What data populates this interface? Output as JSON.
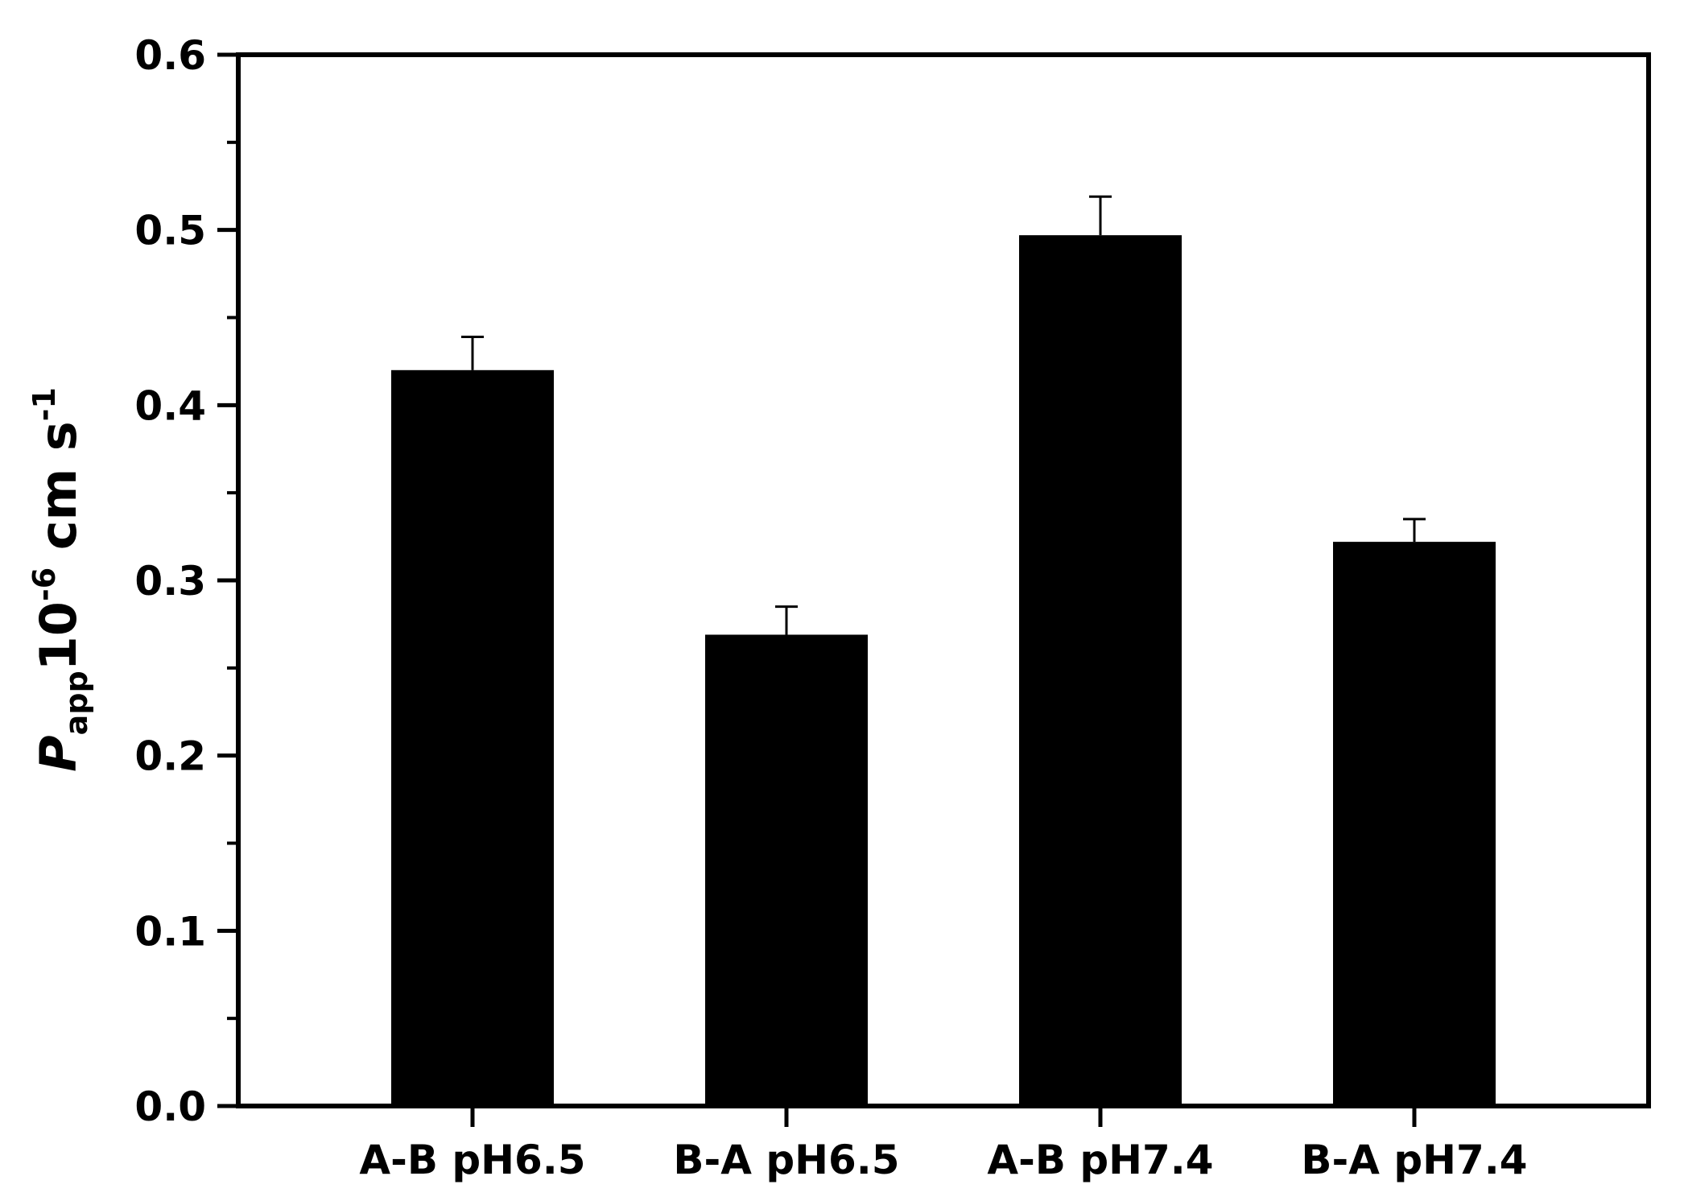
{
  "chart_data": {
    "type": "bar",
    "categories": [
      "A-B pH6.5",
      "B-A pH6.5",
      "A-B pH7.4",
      "B-A pH7.4"
    ],
    "values": [
      0.42,
      0.269,
      0.497,
      0.322
    ],
    "errors": [
      0.019,
      0.016,
      0.022,
      0.013
    ],
    "title": "",
    "ylabel": {
      "main": "P",
      "subscript": "app",
      "mid": "10",
      "mid_sup": "-6",
      "unit": " cm s",
      "unit_sup": "-1"
    },
    "ylim": [
      0,
      0.6
    ],
    "yticks": [
      "0.0",
      "0.1",
      "0.2",
      "0.3",
      "0.4",
      "0.5",
      "0.6"
    ],
    "bar_color": "#000000",
    "grid": false,
    "legend": "none"
  }
}
